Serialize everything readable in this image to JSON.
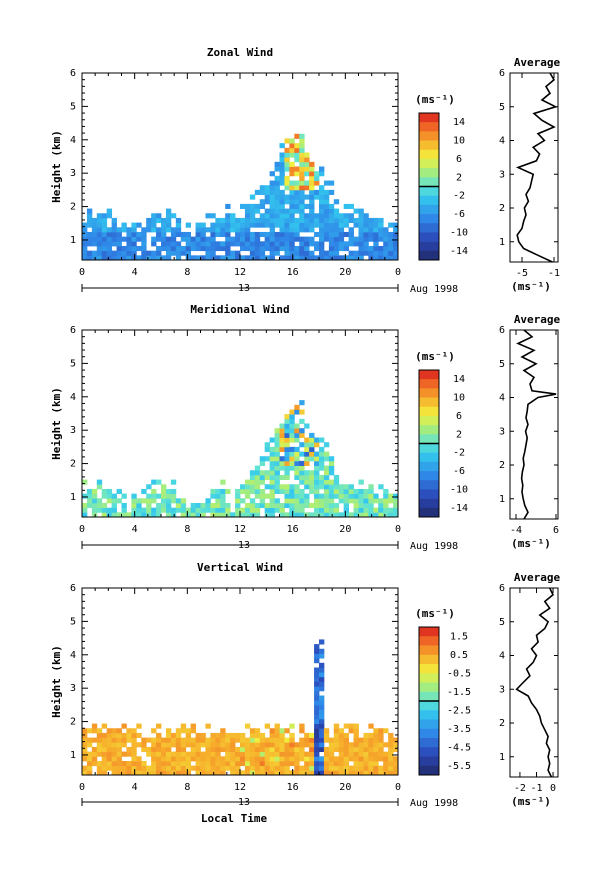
{
  "figure": {
    "date_label": "Aug 1998",
    "day_label": "13",
    "xlabel": "Local Time"
  },
  "chart_data": [
    {
      "type": "heatmap",
      "title": "Zonal Wind",
      "ylabel": "Height (km)",
      "xlim": [
        0,
        24
      ],
      "ylim": [
        0.4,
        6
      ],
      "x_ticks": [
        "0",
        "4",
        "8",
        "12",
        "16",
        "20",
        "0"
      ],
      "y_ticks": [
        "1",
        "2",
        "3",
        "4",
        "5",
        "6"
      ],
      "colorbar": {
        "label": "(ms⁻¹)",
        "range": [
          -16,
          16
        ],
        "ticks": [
          "14",
          "10",
          "6",
          "2",
          "-2",
          "-6",
          "-10",
          "-14"
        ]
      },
      "profile": {
        "title": "Average",
        "xlabel": "(ms⁻¹)",
        "xlim": [
          -6.5,
          -0.5
        ],
        "x_ticks": [
          -5,
          -1
        ],
        "height": [
          0.4,
          0.6,
          0.8,
          1.0,
          1.2,
          1.4,
          1.6,
          1.8,
          2.0,
          2.2,
          2.4,
          2.6,
          2.8,
          3.0,
          3.2,
          3.4,
          3.6,
          3.8,
          4.0,
          4.2,
          4.4,
          4.6,
          4.8,
          5.0,
          5.2,
          5.4,
          5.6,
          5.8,
          6.0
        ],
        "value": [
          -1.2,
          -3.0,
          -4.8,
          -5.4,
          -5.6,
          -5.0,
          -4.8,
          -4.5,
          -4.7,
          -4.2,
          -4.5,
          -4.0,
          -3.8,
          -3.6,
          -5.5,
          -3.2,
          -2.8,
          -3.6,
          -2.2,
          -3.0,
          -1.0,
          -2.5,
          -3.5,
          -0.8,
          -2.5,
          -1.5,
          -2.0,
          -1.0,
          -1.5
        ]
      }
    },
    {
      "type": "heatmap",
      "title": "Meridional Wind",
      "ylabel": "Height (km)",
      "xlim": [
        0,
        24
      ],
      "ylim": [
        0.4,
        6
      ],
      "x_ticks": [
        "0",
        "4",
        "8",
        "12",
        "16",
        "20",
        "0"
      ],
      "y_ticks": [
        "1",
        "2",
        "3",
        "4",
        "5",
        "6"
      ],
      "colorbar": {
        "label": "(ms⁻¹)",
        "range": [
          -16,
          16
        ],
        "ticks": [
          "14",
          "10",
          "6",
          "2",
          "-2",
          "-6",
          "-10",
          "-14"
        ]
      },
      "profile": {
        "title": "Average",
        "xlabel": "(ms⁻¹)",
        "xlim": [
          -5.5,
          6.5
        ],
        "x_ticks": [
          -4,
          6
        ],
        "height": [
          0.4,
          0.6,
          0.8,
          1.0,
          1.2,
          1.4,
          1.6,
          1.8,
          2.0,
          2.2,
          2.4,
          2.6,
          2.8,
          3.0,
          3.2,
          3.4,
          3.6,
          3.8,
          4.0,
          4.1,
          4.2,
          4.4,
          4.6,
          4.8,
          5.0,
          5.2,
          5.4,
          5.6,
          5.8,
          6.0
        ],
        "value": [
          -2.0,
          -1.0,
          -1.8,
          -2.2,
          -2.5,
          -2.3,
          -2.6,
          -2.4,
          -2.0,
          -2.2,
          -1.8,
          -1.5,
          -1.2,
          -1.6,
          -1.0,
          -1.5,
          -1.2,
          -1.0,
          1.5,
          6.0,
          0.0,
          -0.5,
          0.5,
          -2.0,
          1.0,
          -2.5,
          0.5,
          -3.5,
          0.0,
          -2.0
        ]
      }
    },
    {
      "type": "heatmap",
      "title": "Vertical Wind",
      "ylabel": "Height (km)",
      "xlim": [
        0,
        24
      ],
      "ylim": [
        0.4,
        6
      ],
      "x_ticks": [
        "0",
        "4",
        "8",
        "12",
        "16",
        "20",
        "0"
      ],
      "y_ticks": [
        "1",
        "2",
        "3",
        "4",
        "5",
        "6"
      ],
      "colorbar": {
        "label": "(ms⁻¹)",
        "range": [
          -6,
          2
        ],
        "ticks": [
          "1.5",
          "0.5",
          "-0.5",
          "-1.5",
          "-2.5",
          "-3.5",
          "-4.5",
          "-5.5"
        ]
      },
      "profile": {
        "title": "Average",
        "xlabel": "(ms⁻¹)",
        "xlim": [
          -2.6,
          0.3
        ],
        "x_ticks": [
          -2,
          -1,
          0
        ],
        "height": [
          0.4,
          0.6,
          0.8,
          1.0,
          1.2,
          1.4,
          1.6,
          1.8,
          2.0,
          2.2,
          2.4,
          2.6,
          2.8,
          3.0,
          3.2,
          3.4,
          3.6,
          3.8,
          4.0,
          4.2,
          4.4,
          4.6,
          4.8,
          5.0,
          5.2,
          5.4,
          5.6,
          5.8,
          6.0
        ],
        "value": [
          -0.1,
          -0.3,
          -0.2,
          -0.3,
          -0.2,
          -0.4,
          -0.3,
          -0.5,
          -0.7,
          -0.8,
          -1.0,
          -1.3,
          -1.5,
          -2.2,
          -1.8,
          -1.4,
          -1.6,
          -1.2,
          -1.0,
          -1.3,
          -0.9,
          -1.0,
          -0.5,
          -0.3,
          -0.8,
          -0.2,
          -0.5,
          0.0,
          -0.2
        ]
      }
    }
  ]
}
